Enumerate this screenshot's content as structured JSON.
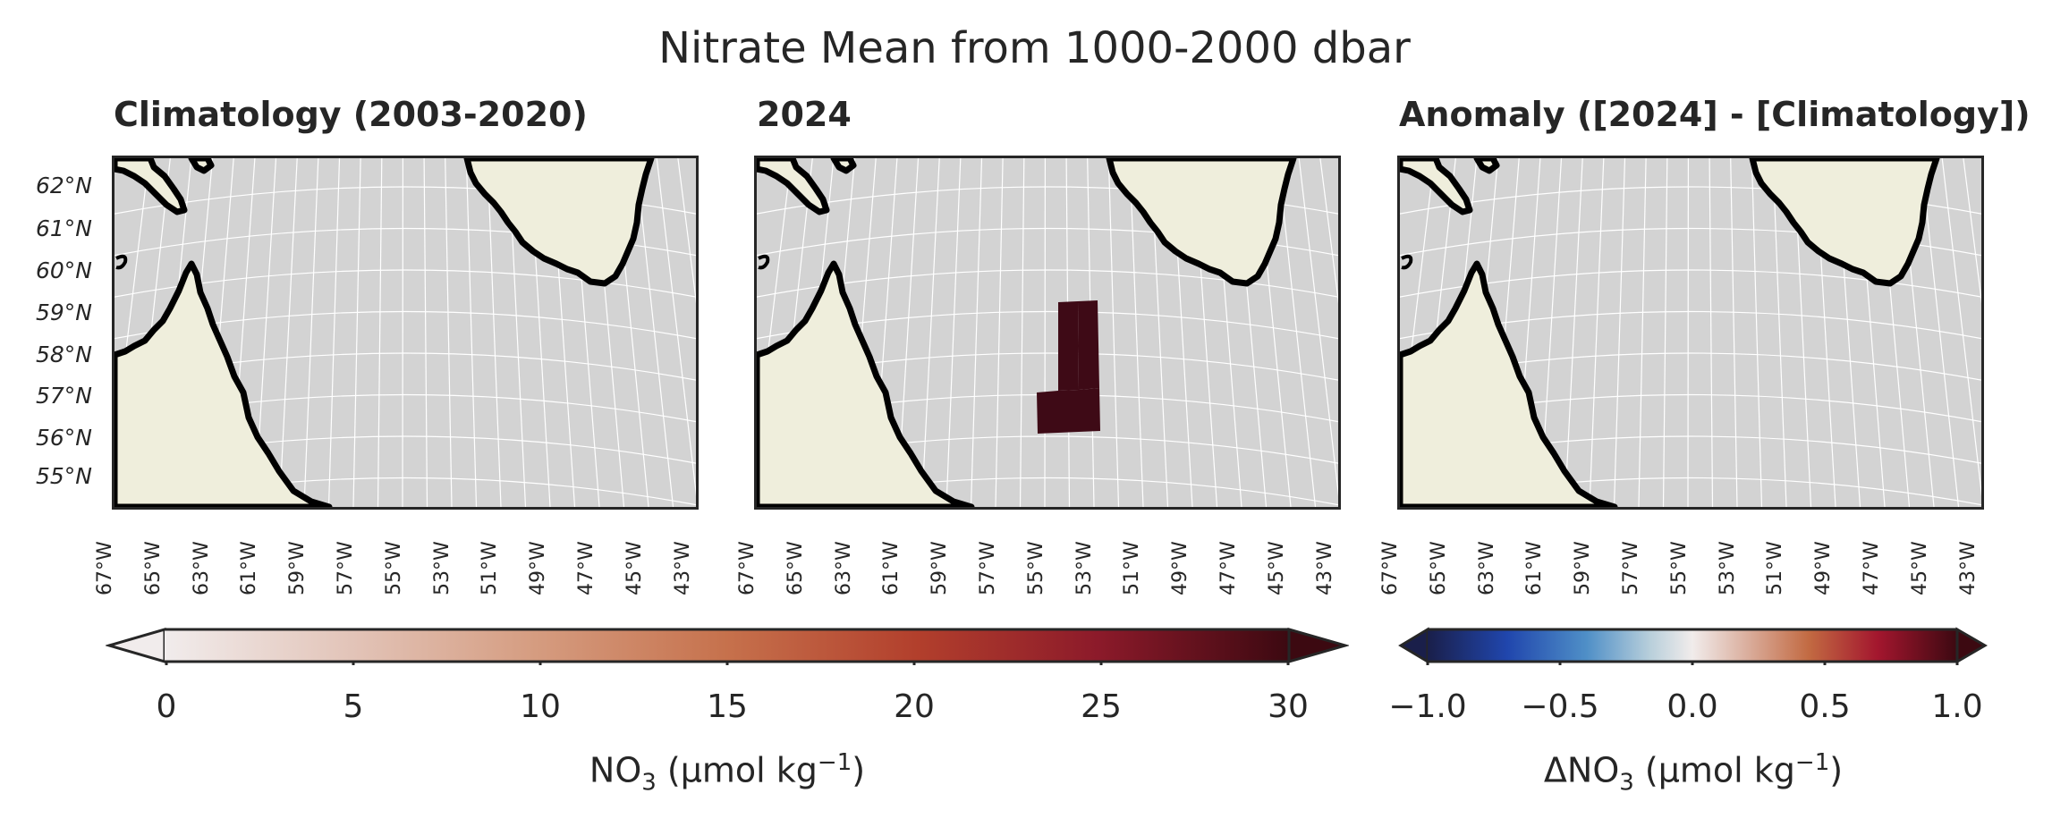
{
  "suptitle": "Nitrate Mean from 1000-2000 dbar",
  "panels": [
    {
      "id": "climatology",
      "title": "Climatology (2003-2020)"
    },
    {
      "id": "year",
      "title": "2024"
    },
    {
      "id": "anomaly",
      "title": "Anomaly ([2024] - [Climatology])"
    }
  ],
  "lat_labels": [
    "62°N",
    "61°N",
    "60°N",
    "59°N",
    "58°N",
    "57°N",
    "56°N",
    "55°N"
  ],
  "lon_labels": [
    "67°W",
    "65°W",
    "63°W",
    "61°W",
    "59°W",
    "57°W",
    "55°W",
    "53°W",
    "51°W",
    "49°W",
    "47°W",
    "45°W",
    "43°W"
  ],
  "colors": {
    "ocean": "#d3d3d3",
    "land": "#efeedc",
    "coast": "#000000",
    "grid": "#ffffff",
    "data_cell": "#3e0a16"
  },
  "colorbars": [
    {
      "id": "no3",
      "ticks": [
        "0",
        "5",
        "10",
        "15",
        "20",
        "25",
        "30"
      ],
      "label_main": "NO",
      "label_sub": "3",
      "label_rest": " (µmol kg",
      "label_sup": "−1",
      "label_end": ")",
      "extend": "both"
    },
    {
      "id": "dno3",
      "ticks": [
        "−1.0",
        "−0.5",
        "0.0",
        "0.5",
        "1.0"
      ],
      "label_main": "ΔNO",
      "label_sub": "3",
      "label_rest": " (µmol kg",
      "label_sup": "−1",
      "label_end": ")",
      "extend": "both"
    }
  ]
}
